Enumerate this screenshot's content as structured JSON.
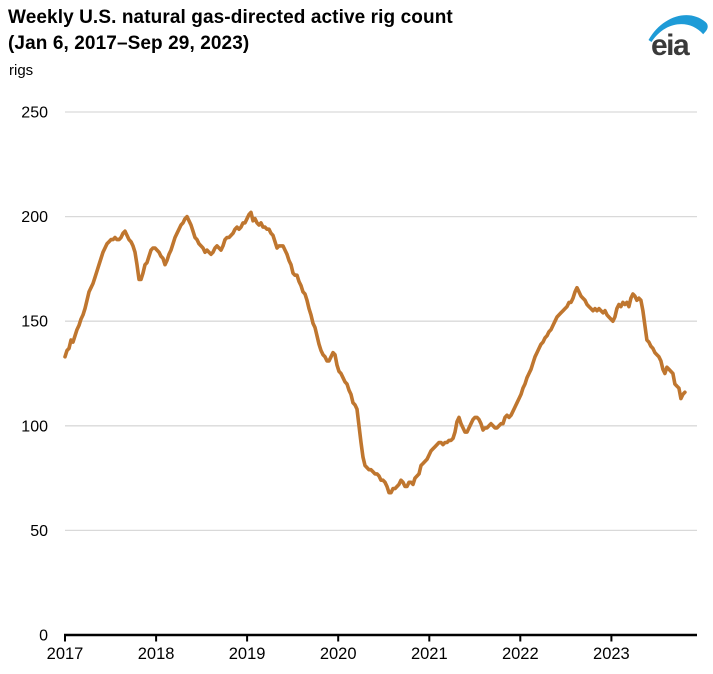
{
  "header": {
    "title_line1": "Weekly U.S. natural gas-directed active rig count",
    "title_line2": "(Jan 6, 2017–Sep 29, 2023)",
    "unit_label": "rigs",
    "logo_text": "eia"
  },
  "colors": {
    "line": "#bf762f",
    "grid": "#d9d9d9",
    "axis": "#000000",
    "tick_text": "#000000",
    "logo_blue": "#1e9bd7",
    "logo_text": "#3a3a3a"
  },
  "chart_data": {
    "type": "line",
    "title": "Weekly U.S. natural gas-directed active rig count (Jan 6, 2017–Sep 29, 2023)",
    "xlabel": "",
    "ylabel": "rigs",
    "legend": "none",
    "grid": "horizontal",
    "y_ticks": [
      0,
      50,
      100,
      150,
      200,
      250
    ],
    "ylim": [
      0,
      250
    ],
    "x_tick_labels": [
      "2017",
      "2018",
      "2019",
      "2020",
      "2021",
      "2022",
      "2023"
    ],
    "xlim_years": [
      2017.0,
      2023.94
    ],
    "series": [
      {
        "name": "U.S. natural gas-directed active rig count",
        "start_year": 2017.0,
        "step_years": 0.02196,
        "first_point": "Jan 6, 2017",
        "last_point": "Sep 29, 2023",
        "values": [
          133,
          136,
          137,
          141,
          140,
          143,
          146,
          148,
          151,
          153,
          156,
          160,
          164,
          166,
          168,
          171,
          174,
          177,
          180,
          183,
          185,
          187,
          188,
          189,
          189,
          190,
          189,
          189,
          190,
          192,
          193,
          191,
          189,
          188,
          186,
          183,
          177,
          170,
          170,
          173,
          177,
          178,
          181,
          184,
          185,
          185,
          184,
          183,
          181,
          180,
          177,
          179,
          182,
          184,
          187,
          190,
          192,
          194,
          196,
          197,
          199,
          200,
          198,
          196,
          193,
          190,
          189,
          187,
          186,
          185,
          183,
          184,
          183,
          182,
          183,
          185,
          186,
          185,
          184,
          186,
          189,
          190,
          190,
          191,
          192,
          194,
          195,
          194,
          195,
          197,
          197,
          199,
          201,
          202,
          198,
          199,
          197,
          196,
          197,
          195,
          195,
          194,
          194,
          192,
          191,
          188,
          185,
          186,
          186,
          186,
          184,
          182,
          179,
          177,
          173,
          172,
          172,
          169,
          167,
          164,
          163,
          160,
          156,
          153,
          149,
          147,
          143,
          139,
          136,
          134,
          133,
          131,
          131,
          133,
          135,
          134,
          129,
          126,
          125,
          123,
          121,
          120,
          117,
          115,
          111,
          110,
          108,
          100,
          92,
          85,
          81,
          80,
          79,
          79,
          78,
          77,
          77,
          76,
          74,
          74,
          73,
          71,
          68,
          68,
          70,
          70,
          71,
          72,
          74,
          73,
          71,
          71,
          73,
          73,
          72,
          75,
          76,
          77,
          81,
          82,
          83,
          84,
          86,
          88,
          89,
          90,
          91,
          92,
          92,
          91,
          92,
          92,
          93,
          93,
          94,
          97,
          102,
          104,
          101,
          99,
          97,
          97,
          99,
          101,
          103,
          104,
          104,
          103,
          101,
          98,
          99,
          99,
          100,
          101,
          100,
          99,
          99,
          100,
          101,
          101,
          104,
          105,
          104,
          105,
          107,
          109,
          111,
          113,
          115,
          118,
          120,
          123,
          125,
          127,
          130,
          133,
          135,
          137,
          139,
          140,
          142,
          143,
          145,
          146,
          148,
          150,
          152,
          153,
          154,
          155,
          156,
          157,
          159,
          159,
          161,
          164,
          166,
          164,
          162,
          161,
          160,
          158,
          157,
          156,
          155,
          156,
          155,
          156,
          155,
          154,
          155,
          153,
          152,
          151,
          150,
          152,
          156,
          158,
          157,
          159,
          158,
          159,
          157,
          161,
          163,
          162,
          160,
          161,
          160,
          155,
          148,
          141,
          140,
          138,
          137,
          135,
          134,
          133,
          131,
          127,
          125,
          128,
          127,
          126,
          125,
          120,
          119,
          118,
          113,
          115,
          116
        ]
      }
    ]
  }
}
